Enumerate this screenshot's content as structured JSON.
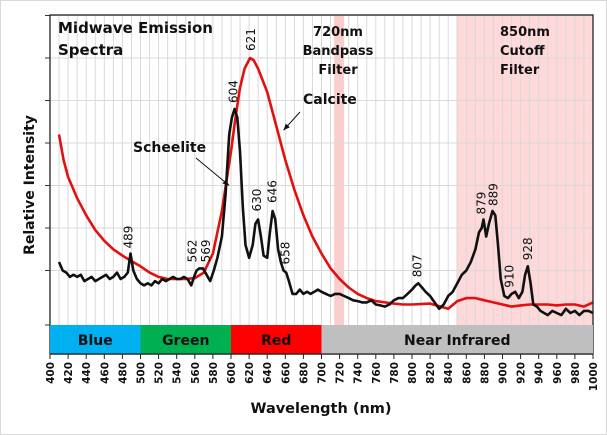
{
  "chart_data": {
    "type": "line",
    "title": "Midwave Emission Spectra",
    "title_lines": [
      "Midwave Emission",
      "Spectra"
    ],
    "xlabel": "Wavelength (nm)",
    "ylabel": "Relative Intensity",
    "xlim": [
      400,
      1000
    ],
    "ylim": [
      0,
      7
    ],
    "x_ticks": [
      400,
      420,
      440,
      460,
      480,
      500,
      520,
      540,
      560,
      580,
      600,
      620,
      640,
      660,
      680,
      700,
      720,
      740,
      760,
      780,
      800,
      820,
      840,
      860,
      880,
      900,
      920,
      940,
      960,
      980,
      1000
    ],
    "y_gridlines": [
      1,
      2,
      3,
      4,
      5,
      6,
      7
    ],
    "grid": true,
    "y_tick_labels_shown": false,
    "bands": [
      {
        "name": "Blue",
        "from": 400,
        "to": 500,
        "color": "#00b0f0"
      },
      {
        "name": "Green",
        "from": 500,
        "to": 600,
        "color": "#00b050"
      },
      {
        "name": "Red",
        "from": 600,
        "to": 700,
        "color": "#ff0000"
      },
      {
        "name": "Near Infrared",
        "from": 700,
        "to": 1000,
        "color": "#bfbfbf"
      }
    ],
    "filters": [
      {
        "label_lines": [
          "720nm",
          "Bandpass",
          "Filter"
        ],
        "from": 714,
        "to": 725,
        "color": "#ffcccc"
      },
      {
        "label_lines": [
          "850nm",
          "Cutoff",
          "Filter"
        ],
        "from": 849,
        "to": 1000,
        "color": "#ffd9d9"
      }
    ],
    "series": [
      {
        "name": "Calcite",
        "color": "#e41010",
        "x": [
          410,
          415,
          420,
          430,
          440,
          450,
          460,
          470,
          480,
          490,
          500,
          510,
          520,
          530,
          540,
          550,
          560,
          570,
          580,
          590,
          600,
          605,
          610,
          615,
          621,
          625,
          630,
          640,
          650,
          660,
          670,
          680,
          690,
          700,
          710,
          720,
          730,
          740,
          750,
          760,
          770,
          780,
          790,
          800,
          820,
          840,
          850,
          860,
          870,
          880,
          890,
          900,
          910,
          920,
          930,
          940,
          950,
          960,
          970,
          980,
          990,
          1000
        ],
        "y": [
          4.2,
          3.6,
          3.2,
          2.7,
          2.3,
          1.95,
          1.7,
          1.5,
          1.35,
          1.22,
          1.1,
          0.95,
          0.85,
          0.8,
          0.8,
          0.8,
          0.82,
          0.95,
          1.4,
          2.4,
          3.8,
          4.6,
          5.3,
          5.75,
          6.0,
          5.95,
          5.75,
          5.2,
          4.4,
          3.6,
          2.9,
          2.3,
          1.8,
          1.4,
          1.05,
          0.8,
          0.6,
          0.45,
          0.35,
          0.28,
          0.25,
          0.22,
          0.2,
          0.2,
          0.22,
          0.1,
          0.28,
          0.35,
          0.35,
          0.3,
          0.25,
          0.2,
          0.15,
          0.18,
          0.2,
          0.2,
          0.2,
          0.18,
          0.2,
          0.2,
          0.15,
          0.25
        ]
      },
      {
        "name": "Scheelite",
        "color": "#111111",
        "x": [
          410,
          414,
          418,
          422,
          426,
          430,
          434,
          438,
          442,
          446,
          450,
          454,
          458,
          462,
          466,
          470,
          474,
          478,
          482,
          486,
          489,
          492,
          496,
          500,
          504,
          508,
          512,
          516,
          520,
          524,
          528,
          532,
          536,
          540,
          544,
          548,
          552,
          556,
          560,
          562,
          565,
          569,
          573,
          577,
          581,
          585,
          590,
          594,
          598,
          601,
          604,
          607,
          610,
          613,
          616,
          620,
          624,
          627,
          630,
          633,
          636,
          640,
          643,
          646,
          649,
          652,
          655,
          658,
          661,
          664,
          668,
          672,
          676,
          680,
          684,
          688,
          692,
          696,
          700,
          705,
          710,
          715,
          720,
          725,
          730,
          735,
          740,
          745,
          750,
          755,
          760,
          765,
          770,
          775,
          780,
          785,
          790,
          795,
          800,
          804,
          807,
          811,
          815,
          820,
          825,
          830,
          835,
          840,
          845,
          850,
          855,
          860,
          865,
          870,
          874,
          877,
          879,
          882,
          885,
          889,
          892,
          895,
          898,
          902,
          906,
          910,
          914,
          918,
          922,
          925,
          928,
          931,
          934,
          938,
          942,
          946,
          950,
          955,
          960,
          965,
          970,
          975,
          980,
          985,
          990,
          995,
          1000
        ],
        "y": [
          1.2,
          1.0,
          0.95,
          0.85,
          0.9,
          0.85,
          0.9,
          0.75,
          0.8,
          0.85,
          0.75,
          0.8,
          0.85,
          0.9,
          0.8,
          0.85,
          0.95,
          0.8,
          0.85,
          0.95,
          1.4,
          1.0,
          0.8,
          0.7,
          0.65,
          0.7,
          0.65,
          0.75,
          0.7,
          0.8,
          0.75,
          0.8,
          0.85,
          0.8,
          0.8,
          0.85,
          0.8,
          0.65,
          0.9,
          1.0,
          1.05,
          1.05,
          0.9,
          0.75,
          1.0,
          1.3,
          1.8,
          2.8,
          4.2,
          4.6,
          4.8,
          4.6,
          3.8,
          2.5,
          1.6,
          1.3,
          1.6,
          2.1,
          2.2,
          1.8,
          1.35,
          1.3,
          1.9,
          2.4,
          2.2,
          1.5,
          1.2,
          1.0,
          0.95,
          0.75,
          0.45,
          0.45,
          0.55,
          0.45,
          0.5,
          0.45,
          0.5,
          0.55,
          0.5,
          0.45,
          0.4,
          0.45,
          0.45,
          0.4,
          0.35,
          0.3,
          0.28,
          0.25,
          0.25,
          0.3,
          0.2,
          0.18,
          0.15,
          0.2,
          0.3,
          0.35,
          0.35,
          0.45,
          0.55,
          0.65,
          0.7,
          0.6,
          0.5,
          0.4,
          0.25,
          0.1,
          0.2,
          0.4,
          0.5,
          0.7,
          0.9,
          1.0,
          1.2,
          1.5,
          1.9,
          2.0,
          2.2,
          1.8,
          2.1,
          2.4,
          2.3,
          1.6,
          0.8,
          0.4,
          0.35,
          0.45,
          0.5,
          0.35,
          0.5,
          0.9,
          1.1,
          0.7,
          0.2,
          0.15,
          0.05,
          0.0,
          -0.05,
          0.05,
          0.0,
          -0.05,
          0.1,
          0.0,
          0.05,
          -0.05,
          0.05,
          0.05,
          0.0
        ]
      }
    ],
    "annotations": {
      "peak_labels": [
        {
          "text": "489",
          "x": 489,
          "y": 1.4
        },
        {
          "text": "562",
          "x": 562,
          "y": 1.05
        },
        {
          "text": "569",
          "x": 569,
          "y": 1.05
        },
        {
          "text": "604",
          "x": 604,
          "y": 4.8
        },
        {
          "text": "621",
          "x": 621,
          "y": 6.0
        },
        {
          "text": "630",
          "x": 630,
          "y": 2.2
        },
        {
          "text": "646",
          "x": 646,
          "y": 2.4
        },
        {
          "text": "658",
          "x": 658,
          "y": 1.0
        },
        {
          "text": "807",
          "x": 807,
          "y": 0.7
        },
        {
          "text": "879",
          "x": 879,
          "y": 2.2
        },
        {
          "text": "889",
          "x": 889,
          "y": 2.4
        },
        {
          "text": "910",
          "x": 910,
          "y": 0.5
        },
        {
          "text": "928",
          "x": 928,
          "y": 1.1
        }
      ],
      "series_labels": [
        {
          "text": "Scheelite",
          "arrow_to_x": 598,
          "arrow_to_y": 3.0
        },
        {
          "text": "Calcite",
          "arrow_to_x": 658,
          "arrow_to_y": 4.3
        }
      ]
    }
  }
}
